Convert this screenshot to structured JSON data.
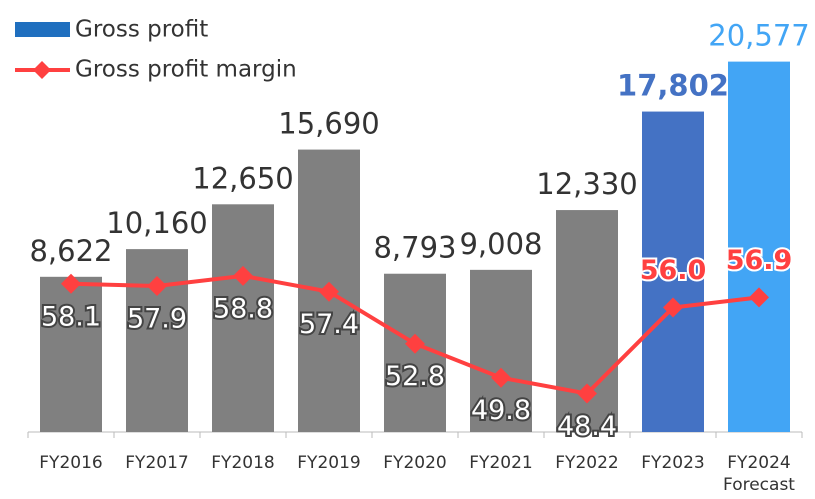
{
  "chart_data": {
    "type": "bar_line",
    "categories": [
      "FY2016",
      "FY2017",
      "FY2018",
      "FY2019",
      "FY2020",
      "FY2021",
      "FY2022",
      "FY2023",
      "FY2024\nForecast"
    ],
    "ylim": [
      0,
      22000
    ],
    "y2lim": [
      45,
      80
    ],
    "series": [
      {
        "name": "Gross profit",
        "type": "bar",
        "color": "#1f6fbf",
        "bar_colors": [
          "#808080",
          "#808080",
          "#808080",
          "#808080",
          "#808080",
          "#808080",
          "#808080",
          "#4472c4",
          "#42a5f5"
        ],
        "label_colors": [
          "#333333",
          "#333333",
          "#333333",
          "#333333",
          "#333333",
          "#333333",
          "#333333",
          "#4472c4",
          "#42a5f5"
        ],
        "values": [
          8622,
          10160,
          12650,
          15690,
          8793,
          9008,
          12330,
          17802,
          20577
        ],
        "value_labels": [
          "8,622",
          "10,160",
          "12,650",
          "15,690",
          "8,793",
          "9,008",
          "12,330",
          "17,802",
          "20,577"
        ]
      },
      {
        "name": "Gross profit margin",
        "type": "line",
        "axis": "y2",
        "color": "#ff4040",
        "label_colors": [
          "#ffffff",
          "#ffffff",
          "#ffffff",
          "#ffffff",
          "#ffffff",
          "#ffffff",
          "#ffffff",
          "#ff4040",
          "#ff4040"
        ],
        "values": [
          58.1,
          57.9,
          58.8,
          57.4,
          52.8,
          49.8,
          48.4,
          56.0,
          56.9
        ],
        "value_labels": [
          "58.1",
          "57.9",
          "58.8",
          "57.4",
          "52.8",
          "49.8",
          "48.4",
          "56.0",
          "56.9"
        ]
      }
    ]
  }
}
